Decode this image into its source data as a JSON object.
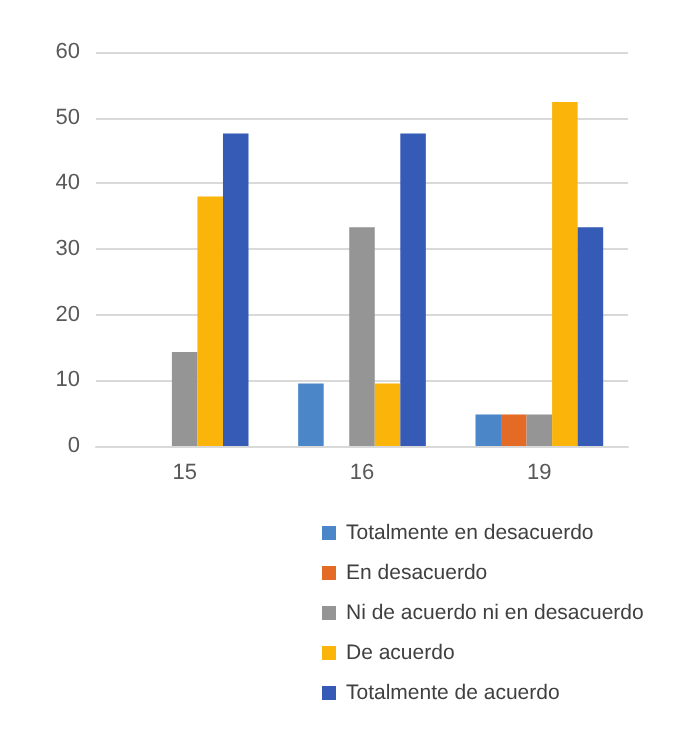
{
  "chart_data": {
    "type": "bar",
    "categories": [
      "15",
      "16",
      "19"
    ],
    "series": [
      {
        "name": "Totalmente en desacuerdo",
        "color": "#4a86c8",
        "values": [
          0,
          9.5,
          4.8
        ]
      },
      {
        "name": "En desacuerdo",
        "color": "#e36b26",
        "values": [
          0,
          0,
          4.8
        ]
      },
      {
        "name": "Ni de acuerdo ni en desacuerdo",
        "color": "#959595",
        "values": [
          14.3,
          33.3,
          4.8
        ]
      },
      {
        "name": "De acuerdo",
        "color": "#fbb40a",
        "values": [
          38,
          9.5,
          52.4
        ]
      },
      {
        "name": "Totalmente de acuerdo",
        "color": "#355bb7",
        "values": [
          47.6,
          47.6,
          33.3
        ]
      }
    ],
    "ylim": [
      0,
      60
    ],
    "yticks": [
      0,
      10,
      20,
      30,
      40,
      50,
      60
    ],
    "grid": "y",
    "legend": "bottom"
  }
}
